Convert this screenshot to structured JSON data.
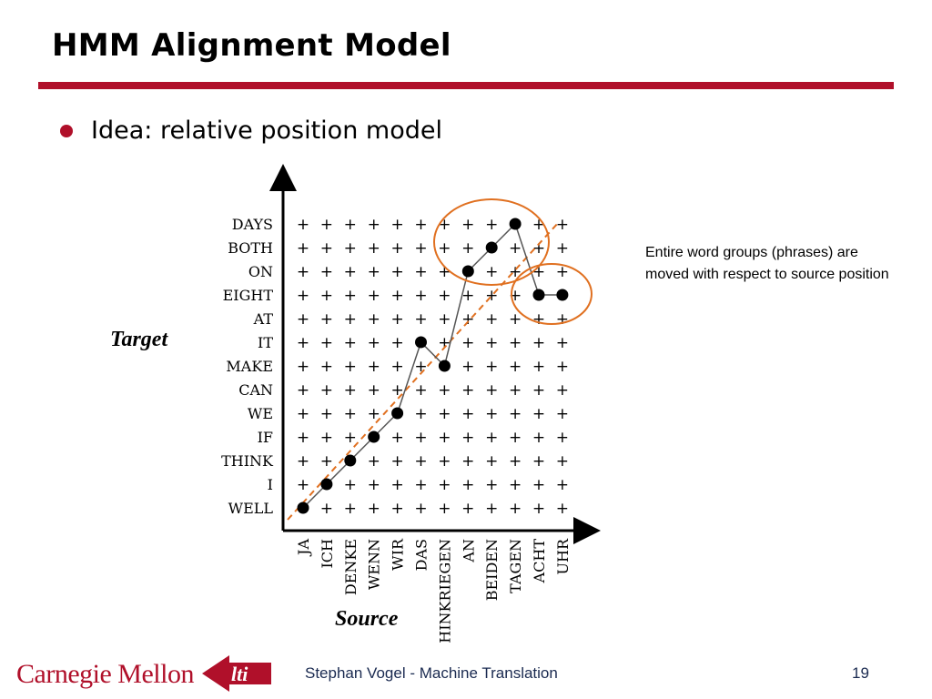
{
  "slide": {
    "title": "HMM Alignment Model",
    "bullet": "Idea: relative position model",
    "note": "Entire word groups (phrases) are moved with respect to source position",
    "target_label": "Target",
    "source_label": "Source"
  },
  "footer": {
    "logo_text": "Carnegie Mellon",
    "lti_text": "lti",
    "presenter": "Stephan Vogel - Machine Translation",
    "page": "19"
  },
  "diagram": {
    "target_words": [
      "WELL",
      "I",
      "THINK",
      "IF",
      "WE",
      "CAN",
      "MAKE",
      "IT",
      "AT",
      "EIGHT",
      "ON",
      "BOTH",
      "DAYS"
    ],
    "source_words": [
      "JA",
      "ICH",
      "DENKE",
      "WENN",
      "WIR",
      "DAS",
      "HINKRIEGEN",
      "AN",
      "BEIDEN",
      "TAGEN",
      "ACHT",
      "UHR"
    ],
    "alignment": [
      [
        1,
        1
      ],
      [
        2,
        2
      ],
      [
        3,
        3
      ],
      [
        4,
        4
      ],
      [
        5,
        5
      ],
      [
        6,
        8
      ],
      [
        7,
        7
      ],
      [
        8,
        11
      ],
      [
        9,
        12
      ],
      [
        10,
        13
      ],
      [
        11,
        10
      ],
      [
        12,
        10
      ]
    ],
    "colors": {
      "path": "#555555",
      "dot": "#000000",
      "diagonal": "#e07020",
      "circle": "#e07020",
      "accent": "#b0102a"
    }
  }
}
